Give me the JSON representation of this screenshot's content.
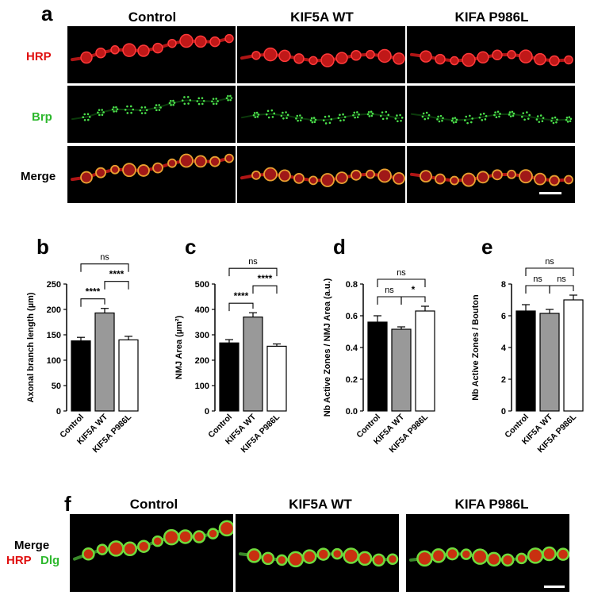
{
  "panel_a": {
    "letter": "a",
    "columns": [
      "Control",
      "KIF5A WT",
      "KIFA P986L"
    ],
    "rows": [
      {
        "label": "HRP",
        "color": "#e01010"
      },
      {
        "label": "Brp",
        "color": "#2db82d"
      },
      {
        "label": "Merge",
        "color": "#000000"
      }
    ]
  },
  "panel_f": {
    "letter": "f",
    "columns": [
      "Control",
      "KIF5A WT",
      "KIFA P986L"
    ],
    "label_merge": "Merge",
    "label_hrp": "HRP",
    "label_dlg": "Dlg",
    "hrp_color": "#e01010",
    "dlg_color": "#2db82d"
  },
  "chart_data": [
    {
      "letter": "b",
      "type": "bar",
      "categories": [
        "Control",
        "KIF5A WT",
        "KIF5A P986L"
      ],
      "values": [
        138,
        193,
        140
      ],
      "errors": [
        7,
        9,
        7
      ],
      "colors": [
        "#000000",
        "#999999",
        "#ffffff"
      ],
      "ylabel": "Axonal branch length (µm)",
      "ylim": [
        0,
        250
      ],
      "yticks": [
        0,
        50,
        100,
        150,
        200,
        250
      ],
      "significance": [
        {
          "pair": [
            0,
            1
          ],
          "label": "****",
          "level": 1
        },
        {
          "pair": [
            1,
            2
          ],
          "label": "****",
          "level": 2
        },
        {
          "pair": [
            0,
            2
          ],
          "label": "ns",
          "level": 3
        }
      ]
    },
    {
      "letter": "c",
      "type": "bar",
      "categories": [
        "Control",
        "KIF5A WT",
        "KIF5A P986L"
      ],
      "values": [
        268,
        370,
        255
      ],
      "errors": [
        13,
        17,
        9
      ],
      "colors": [
        "#000000",
        "#999999",
        "#ffffff"
      ],
      "ylabel": "NMJ Area (µm²)",
      "ylim": [
        0,
        500
      ],
      "yticks": [
        0,
        100,
        200,
        300,
        400,
        500
      ],
      "significance": [
        {
          "pair": [
            0,
            1
          ],
          "label": "****",
          "level": 1
        },
        {
          "pair": [
            1,
            2
          ],
          "label": "****",
          "level": 2
        },
        {
          "pair": [
            0,
            2
          ],
          "label": "ns",
          "level": 3
        }
      ]
    },
    {
      "letter": "d",
      "type": "bar",
      "categories": [
        "Control",
        "KIF5A WT",
        "KIF5A P986L"
      ],
      "values": [
        0.56,
        0.515,
        0.63
      ],
      "errors": [
        0.04,
        0.015,
        0.03
      ],
      "colors": [
        "#000000",
        "#999999",
        "#ffffff"
      ],
      "ylabel": "Nb Active Zones / NMJ Area (a.u.)",
      "ylim": [
        0,
        0.8
      ],
      "yticks": [
        0.0,
        0.2,
        0.4,
        0.6,
        0.8
      ],
      "tick_decimals": 1,
      "significance": [
        {
          "pair": [
            0,
            1
          ],
          "label": "ns",
          "level": 1
        },
        {
          "pair": [
            1,
            2
          ],
          "label": "*",
          "level": 1
        },
        {
          "pair": [
            0,
            2
          ],
          "label": "ns",
          "level": 2
        }
      ]
    },
    {
      "letter": "e",
      "type": "bar",
      "categories": [
        "Control",
        "KIF5A WT",
        "KIF5A P986L"
      ],
      "values": [
        6.3,
        6.15,
        7.0
      ],
      "errors": [
        0.4,
        0.25,
        0.3
      ],
      "colors": [
        "#000000",
        "#999999",
        "#ffffff"
      ],
      "ylabel": "Nb Active Zones / Bouton",
      "ylim": [
        0,
        8
      ],
      "yticks": [
        0,
        2,
        4,
        6,
        8
      ],
      "significance": [
        {
          "pair": [
            0,
            1
          ],
          "label": "ns",
          "level": 1
        },
        {
          "pair": [
            1,
            2
          ],
          "label": "ns",
          "level": 1
        },
        {
          "pair": [
            0,
            2
          ],
          "label": "ns",
          "level": 2
        }
      ]
    }
  ]
}
